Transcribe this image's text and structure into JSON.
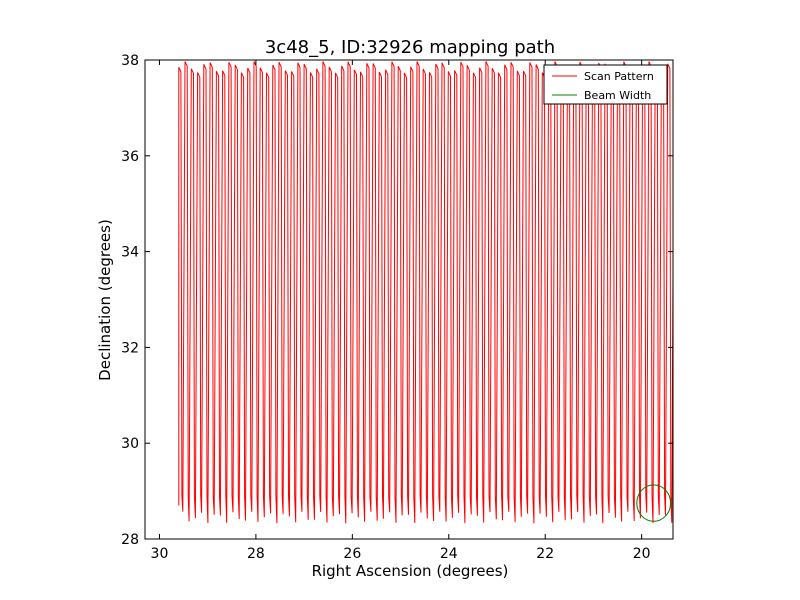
{
  "chart_data": {
    "type": "line",
    "title": "3c48_5, ID:32926 mapping path",
    "xlabel": "Right Ascension (degrees)",
    "ylabel": "Declination (degrees)",
    "xlim": [
      30.3,
      19.35
    ],
    "ylim": [
      28,
      38
    ],
    "xticks": [
      {
        "value": 30,
        "label": "30"
      },
      {
        "value": 28,
        "label": "28"
      },
      {
        "value": 26,
        "label": "26"
      },
      {
        "value": 24,
        "label": "24"
      },
      {
        "value": 22,
        "label": "22"
      },
      {
        "value": 20,
        "label": "20"
      }
    ],
    "yticks": [
      {
        "value": 28,
        "label": "28"
      },
      {
        "value": 30,
        "label": "30"
      },
      {
        "value": 32,
        "label": "32"
      },
      {
        "value": 34,
        "label": "34"
      },
      {
        "value": 36,
        "label": "36"
      },
      {
        "value": 38,
        "label": "38"
      }
    ],
    "grid": false,
    "legend_position": "top-right",
    "series": [
      {
        "name": "Scan Pattern",
        "color": "#ff0000",
        "pattern": "zigzag",
        "ra_start": 29.6,
        "ra_end": 19.35,
        "ra_spacing": 0.13,
        "dec_low": 28.45,
        "dec_high": 37.85
      },
      {
        "name": "Beam Width",
        "color": "#008000",
        "shape": "circle",
        "ra_center": 19.75,
        "dec_center": 28.75,
        "ra_radius": 0.35,
        "dec_radius": 0.38
      }
    ]
  }
}
